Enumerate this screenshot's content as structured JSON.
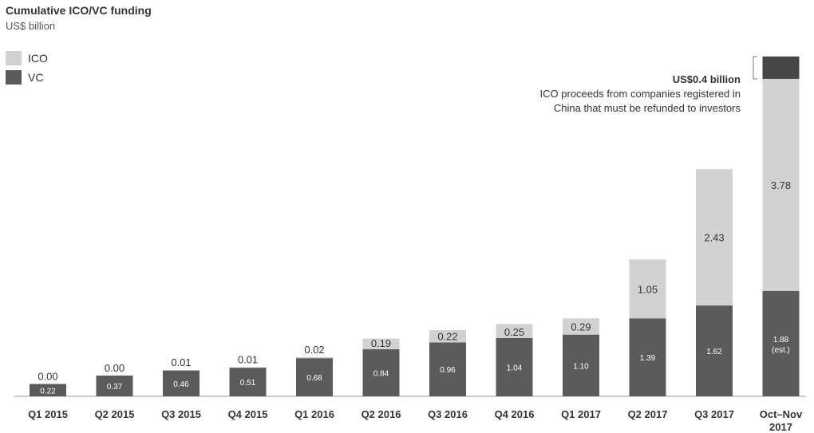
{
  "title": "Cumulative ICO/VC funding",
  "subtitle": "US$ billion",
  "colors": {
    "ico": "#d2d2d2",
    "vc": "#5b5b5b",
    "vc_extra": "#454545"
  },
  "annotation": {
    "title": "US$0.4 billion",
    "line1": "ICO proceeds from companies registered in",
    "line2": "China that must be refunded to investors"
  },
  "chart_data": {
    "type": "bar",
    "stacked": true,
    "title": "Cumulative ICO/VC funding",
    "subtitle": "US$ billion",
    "legend_position": "top-left",
    "categories": [
      [
        "Q1 2015"
      ],
      [
        "Q2 2015"
      ],
      [
        "Q3 2015"
      ],
      [
        "Q4 2015"
      ],
      [
        "Q1 2016"
      ],
      [
        "Q2 2016"
      ],
      [
        "Q3 2016"
      ],
      [
        "Q4 2016"
      ],
      [
        "Q1 2017"
      ],
      [
        "Q2 2017"
      ],
      [
        "Q3 2017"
      ],
      [
        "Oct–Nov",
        "2017"
      ]
    ],
    "series": [
      {
        "name": "VC",
        "values": [
          0.22,
          0.37,
          0.46,
          0.51,
          0.68,
          0.84,
          0.96,
          1.04,
          1.1,
          1.39,
          1.62,
          1.88
        ],
        "labels": [
          "0.22",
          "0.37",
          "0.46",
          "0.51",
          "0.68",
          "0.84",
          "0.96",
          "1.04",
          "1.10",
          "1.39",
          "1.62",
          "1.88|(est.)"
        ]
      },
      {
        "name": "ICO",
        "values": [
          0.0,
          0.0,
          0.01,
          0.01,
          0.02,
          0.19,
          0.22,
          0.25,
          0.29,
          1.05,
          2.43,
          3.78
        ],
        "labels": [
          "0.00",
          "0.00",
          "0.01",
          "0.01",
          "0.02",
          "0.19",
          "0.22",
          "0.25",
          "0.29",
          "1.05",
          "2.43",
          "3.78"
        ]
      }
    ],
    "extra": {
      "category_index": 11,
      "value": 0.4
    },
    "ylim": [
      0,
      6.1
    ],
    "grid": false
  }
}
